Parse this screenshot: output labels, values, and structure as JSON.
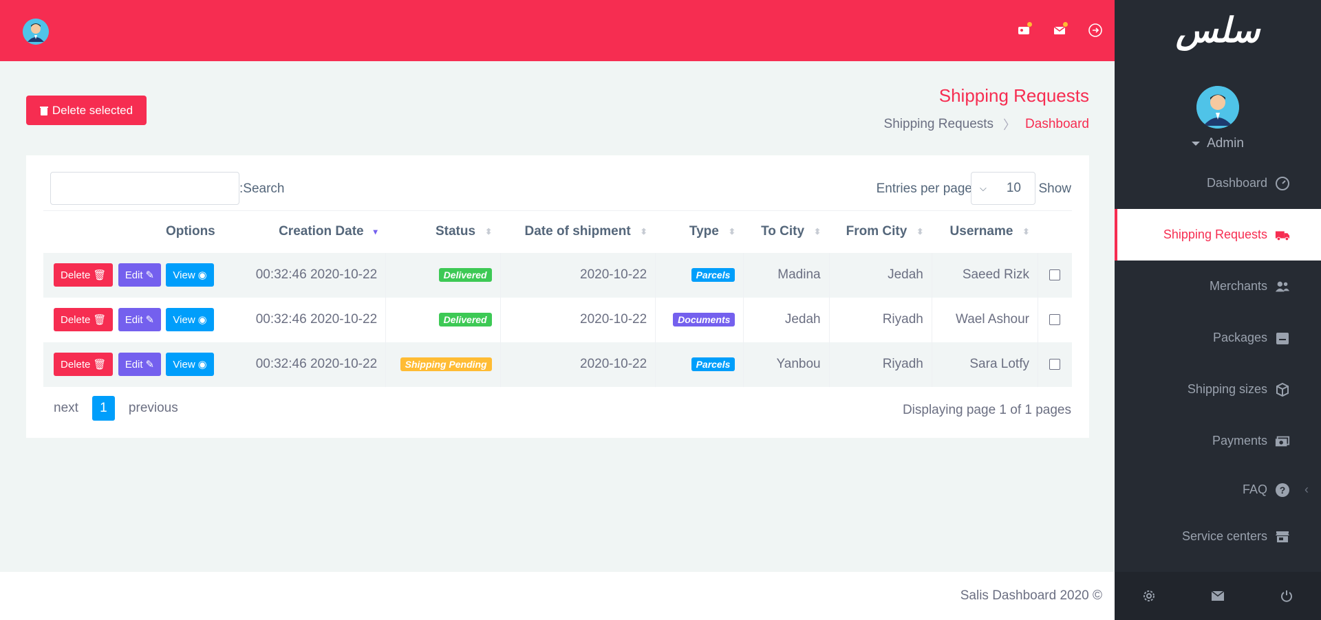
{
  "brand": {
    "logo_text": "سلس",
    "accent": "#f62d51",
    "sidebar_bg": "#262b33"
  },
  "user": {
    "name": "Admin"
  },
  "nav": [
    {
      "label": "Dashboard",
      "icon": "speedometer-icon",
      "active": false
    },
    {
      "label": "Shipping Requests",
      "icon": "truck-icon",
      "active": true
    },
    {
      "label": "Merchants",
      "icon": "users-icon",
      "active": false
    },
    {
      "label": "Packages",
      "icon": "package-icon",
      "active": false
    },
    {
      "label": "Shipping sizes",
      "icon": "cube-icon",
      "active": false
    },
    {
      "label": "Payments",
      "icon": "money-icon",
      "active": false
    },
    {
      "label": "FAQ",
      "icon": "question-icon",
      "active": false
    },
    {
      "label": "Service centers",
      "icon": "store-icon",
      "active": false
    }
  ],
  "toolbar": {
    "delete_selected": "Delete selected"
  },
  "page": {
    "title": "Shipping Requests",
    "breadcrumb": [
      "Shipping Requests",
      "Dashboard"
    ]
  },
  "table_controls": {
    "search_label": ":Search",
    "search_value": "",
    "entries_label": "Entries per page",
    "entries_value": "10",
    "show_label": "Show"
  },
  "table": {
    "headers": [
      "Options",
      "Creation Date",
      "Status",
      "Date of shipment",
      "Type",
      "To City",
      "From City",
      "Username"
    ],
    "buttons": {
      "delete": "Delete",
      "edit": "Edit",
      "view": "View"
    },
    "rows": [
      {
        "created": "00:32:46 2020-10-22",
        "status": "Delivered",
        "status_color": "#3dc955",
        "shipment_date": "2020-10-22",
        "type": "Parcels",
        "type_color": "#009efb",
        "to_city": "Madina",
        "from_city": "Jedah",
        "username": "Saeed Rizk"
      },
      {
        "created": "00:32:46 2020-10-22",
        "status": "Delivered",
        "status_color": "#3dc955",
        "shipment_date": "2020-10-22",
        "type": "Documents",
        "type_color": "#7460ee",
        "to_city": "Jedah",
        "from_city": "Riyadh",
        "username": "Wael Ashour"
      },
      {
        "created": "00:32:46 2020-10-22",
        "status": "Shipping Pending",
        "status_color": "#ffbc34",
        "shipment_date": "2020-10-22",
        "type": "Parcels",
        "type_color": "#009efb",
        "to_city": "Yanbou",
        "from_city": "Riyadh",
        "username": "Sara Lotfy"
      }
    ]
  },
  "pagination": {
    "next": "next",
    "current": "1",
    "previous": "previous",
    "info": "Displaying page 1 of 1 pages"
  },
  "footer": {
    "text": "Salis Dashboard 2020 ©"
  }
}
